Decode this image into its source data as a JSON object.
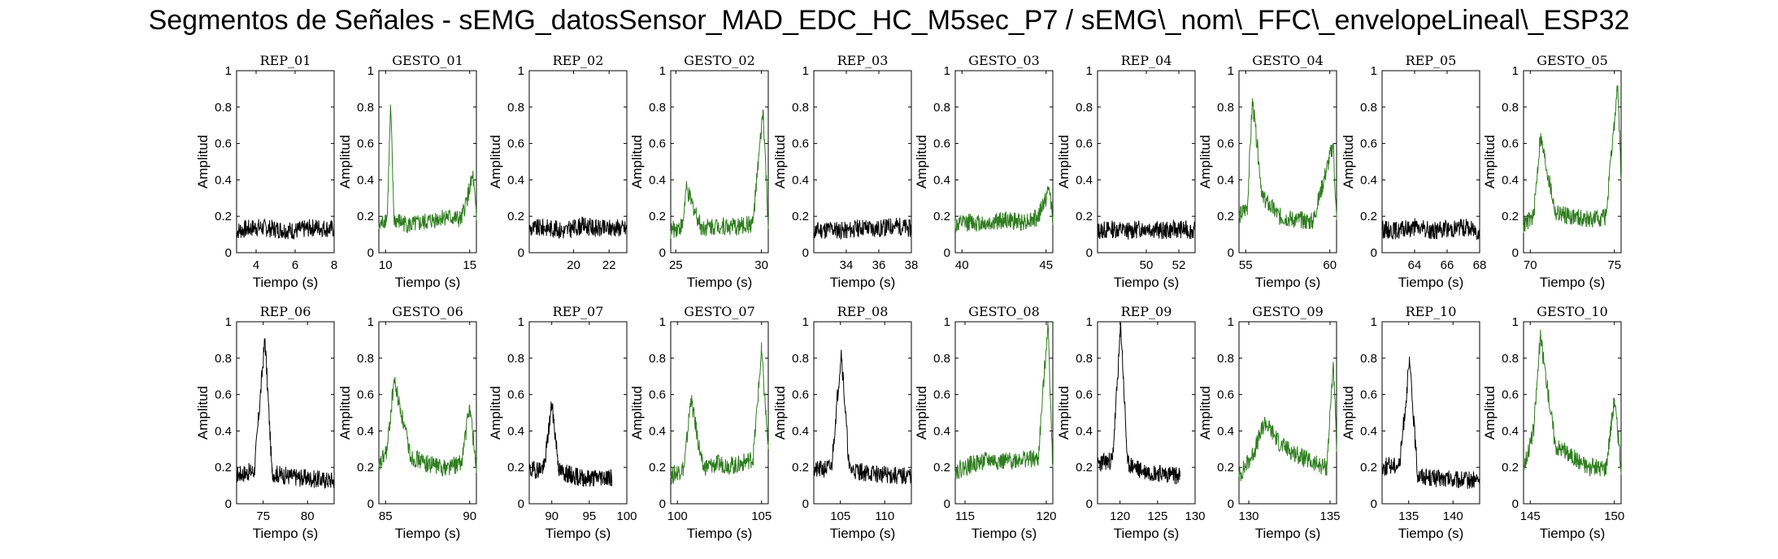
{
  "title": "Segmentos de Señales - sEMG_datosSensor_MAD_EDC_HC_M5sec_P7 / sEMG\\_nom\\_FFC\\_envelopeLineal\\_ESP32",
  "colors": {
    "rep": "#000000",
    "gesto": "#2e7d1e",
    "axis": "#000000"
  },
  "chart_data": [
    {
      "type": "line",
      "title": "REP_01",
      "xlabel": "Tiempo (s)",
      "ylabel": "Amplitud",
      "xlim": [
        3,
        8
      ],
      "ylim": [
        0,
        1
      ],
      "xticks": [
        4,
        6,
        8
      ],
      "yticks": [
        0,
        0.2,
        0.4,
        0.6,
        0.8,
        1
      ],
      "color": "black",
      "series": [
        {
          "x": [
            3,
            4,
            5,
            6,
            7,
            8
          ],
          "values": [
            0.12,
            0.14,
            0.13,
            0.12,
            0.14,
            0.13
          ]
        }
      ]
    },
    {
      "type": "line",
      "title": "GESTO_01",
      "xlabel": "Tiempo (s)",
      "ylabel": "Amplitud",
      "xlim": [
        9.6,
        15.4
      ],
      "ylim": [
        0,
        1
      ],
      "xticks": [
        10,
        15
      ],
      "yticks": [
        0,
        0.2,
        0.4,
        0.6,
        0.8,
        1
      ],
      "color": "green",
      "series": [
        {
          "x": [
            9.6,
            10.1,
            10.3,
            10.5,
            11.5,
            12.5,
            13.5,
            14.5,
            15.2,
            15.4
          ],
          "values": [
            0.14,
            0.2,
            0.8,
            0.18,
            0.15,
            0.17,
            0.2,
            0.18,
            0.42,
            0.18
          ]
        }
      ]
    },
    {
      "type": "line",
      "title": "REP_02",
      "xlabel": "",
      "ylabel": "Amplitud",
      "xlim": [
        17.5,
        23
      ],
      "ylim": [
        0,
        1
      ],
      "xticks": [
        20,
        22
      ],
      "yticks": [
        0,
        0.2,
        0.4,
        0.6,
        0.8,
        1
      ],
      "color": "black",
      "series": [
        {
          "x": [
            17.5,
            18.5,
            19.5,
            20.5,
            21.5,
            22.5,
            23
          ],
          "values": [
            0.13,
            0.14,
            0.12,
            0.15,
            0.13,
            0.14,
            0.13
          ]
        }
      ]
    },
    {
      "type": "line",
      "title": "GESTO_02",
      "xlabel": "Tiempo (s)",
      "ylabel": "Amplitud",
      "xlim": [
        24.7,
        30.4
      ],
      "ylim": [
        0,
        1
      ],
      "xticks": [
        25,
        30
      ],
      "yticks": [
        0,
        0.2,
        0.4,
        0.6,
        0.8,
        1
      ],
      "color": "green",
      "series": [
        {
          "x": [
            24.7,
            25.4,
            25.6,
            26.5,
            27.5,
            28.5,
            29.5,
            30.1,
            30.4
          ],
          "values": [
            0.12,
            0.15,
            0.35,
            0.14,
            0.15,
            0.14,
            0.16,
            0.78,
            0.15
          ]
        }
      ]
    },
    {
      "type": "line",
      "title": "REP_03",
      "xlabel": "Tiempo (s)",
      "ylabel": "Amplitud",
      "xlim": [
        32,
        38
      ],
      "ylim": [
        0,
        1
      ],
      "xticks": [
        34,
        36,
        38
      ],
      "yticks": [
        0,
        0.2,
        0.4,
        0.6,
        0.8,
        1
      ],
      "color": "black",
      "series": [
        {
          "x": [
            32,
            33,
            34,
            35,
            36,
            37,
            38
          ],
          "values": [
            0.12,
            0.13,
            0.12,
            0.14,
            0.13,
            0.15,
            0.13
          ]
        }
      ]
    },
    {
      "type": "line",
      "title": "GESTO_03",
      "xlabel": "",
      "ylabel": "Amplitud",
      "xlim": [
        39.6,
        45.4
      ],
      "ylim": [
        0,
        1
      ],
      "xticks": [
        40,
        45
      ],
      "yticks": [
        0,
        0.2,
        0.4,
        0.6,
        0.8,
        1
      ],
      "color": "green",
      "series": [
        {
          "x": [
            39.6,
            40.5,
            41.5,
            42.5,
            43.5,
            44.5,
            45.2,
            45.4
          ],
          "values": [
            0.15,
            0.17,
            0.16,
            0.18,
            0.17,
            0.19,
            0.35,
            0.2
          ]
        }
      ]
    },
    {
      "type": "line",
      "title": "REP_04",
      "xlabel": "Tiempo (s)",
      "ylabel": "Amplitud",
      "xlim": [
        47,
        53
      ],
      "ylim": [
        0,
        1
      ],
      "xticks": [
        50,
        52
      ],
      "yticks": [
        0,
        0.2,
        0.4,
        0.6,
        0.8,
        1
      ],
      "color": "black",
      "series": [
        {
          "x": [
            47,
            48,
            49,
            50,
            51,
            52,
            53
          ],
          "values": [
            0.12,
            0.13,
            0.12,
            0.14,
            0.12,
            0.13,
            0.12
          ]
        }
      ]
    },
    {
      "type": "line",
      "title": "GESTO_04",
      "xlabel": "Tiempo (s)",
      "ylabel": "Amplitud",
      "xlim": [
        54.6,
        60.4
      ],
      "ylim": [
        0,
        1
      ],
      "xticks": [
        55,
        60
      ],
      "yticks": [
        0,
        0.2,
        0.4,
        0.6,
        0.8,
        1
      ],
      "color": "green",
      "series": [
        {
          "x": [
            54.6,
            55.1,
            55.4,
            56,
            57,
            58,
            59,
            60.2,
            60.4
          ],
          "values": [
            0.2,
            0.25,
            0.84,
            0.3,
            0.2,
            0.18,
            0.17,
            0.6,
            0.18
          ]
        }
      ]
    },
    {
      "type": "line",
      "title": "REP_05",
      "xlabel": "Tiempo (s)",
      "ylabel": "Amplitud",
      "xlim": [
        62,
        68
      ],
      "ylim": [
        0,
        1
      ],
      "xticks": [
        64,
        66,
        68
      ],
      "yticks": [
        0,
        0.2,
        0.4,
        0.6,
        0.8,
        1
      ],
      "color": "black",
      "series": [
        {
          "x": [
            62,
            63,
            64,
            65,
            66,
            67,
            68
          ],
          "values": [
            0.13,
            0.12,
            0.14,
            0.12,
            0.13,
            0.14,
            0.12
          ]
        }
      ]
    },
    {
      "type": "line",
      "title": "GESTO_05",
      "xlabel": "Tiempo (s)",
      "ylabel": "Amplitud",
      "xlim": [
        69.6,
        75.4
      ],
      "ylim": [
        0,
        1
      ],
      "xticks": [
        70,
        75
      ],
      "yticks": [
        0,
        0.2,
        0.4,
        0.6,
        0.8,
        1
      ],
      "color": "green",
      "series": [
        {
          "x": [
            69.6,
            70.2,
            70.6,
            71.5,
            72.5,
            73.5,
            74.5,
            75.2,
            75.4
          ],
          "values": [
            0.15,
            0.2,
            0.64,
            0.22,
            0.2,
            0.18,
            0.2,
            0.92,
            0.4
          ]
        }
      ]
    },
    {
      "type": "line",
      "title": "REP_06",
      "xlabel": "Tiempo (s)",
      "ylabel": "Amplitud",
      "xlim": [
        72,
        83
      ],
      "ylim": [
        0,
        1
      ],
      "xticks": [
        75,
        80
      ],
      "yticks": [
        0,
        0.2,
        0.4,
        0.6,
        0.8,
        1
      ],
      "color": "black",
      "series": [
        {
          "x": [
            72,
            74,
            75.2,
            76,
            78,
            80,
            82,
            83
          ],
          "values": [
            0.16,
            0.18,
            0.91,
            0.17,
            0.15,
            0.14,
            0.13,
            0.13
          ]
        }
      ]
    },
    {
      "type": "line",
      "title": "GESTO_06",
      "xlabel": "Tiempo (s)",
      "ylabel": "Amplitud",
      "xlim": [
        84.6,
        90.4
      ],
      "ylim": [
        0,
        1
      ],
      "xticks": [
        85,
        90
      ],
      "yticks": [
        0,
        0.2,
        0.4,
        0.6,
        0.8,
        1
      ],
      "color": "green",
      "series": [
        {
          "x": [
            84.6,
            85.1,
            85.5,
            86.5,
            87.5,
            88.5,
            89.5,
            90,
            90.4
          ],
          "values": [
            0.2,
            0.3,
            0.68,
            0.26,
            0.22,
            0.2,
            0.22,
            0.54,
            0.2
          ]
        }
      ]
    },
    {
      "type": "line",
      "title": "REP_07",
      "xlabel": "Tiempo (s)",
      "ylabel": "Amplitud",
      "xlim": [
        87,
        100
      ],
      "ylim": [
        0,
        1
      ],
      "xticks": [
        90,
        95,
        100
      ],
      "yticks": [
        0,
        0.2,
        0.4,
        0.6,
        0.8,
        1
      ],
      "color": "black",
      "series": [
        {
          "x": [
            87,
            89,
            90,
            91,
            93,
            95,
            97,
            98
          ],
          "values": [
            0.18,
            0.2,
            0.55,
            0.18,
            0.15,
            0.14,
            0.15,
            0.14
          ]
        }
      ]
    },
    {
      "type": "line",
      "title": "GESTO_07",
      "xlabel": "Tiempo (s)",
      "ylabel": "Amplitud",
      "xlim": [
        99.6,
        105.4
      ],
      "ylim": [
        0,
        1
      ],
      "xticks": [
        100,
        105
      ],
      "yticks": [
        0,
        0.2,
        0.4,
        0.6,
        0.8,
        1
      ],
      "color": "green",
      "series": [
        {
          "x": [
            99.6,
            100.4,
            100.8,
            101.5,
            102.5,
            103.5,
            104.5,
            105,
            105.4
          ],
          "values": [
            0.15,
            0.2,
            0.58,
            0.2,
            0.22,
            0.21,
            0.25,
            0.84,
            0.3
          ]
        }
      ]
    },
    {
      "type": "line",
      "title": "REP_08",
      "xlabel": "Tiempo (s)",
      "ylabel": "Amplitud",
      "xlim": [
        102,
        113
      ],
      "ylim": [
        0,
        1
      ],
      "xticks": [
        105,
        110
      ],
      "yticks": [
        0,
        0.2,
        0.4,
        0.6,
        0.8,
        1
      ],
      "color": "black",
      "series": [
        {
          "x": [
            102,
            104,
            105.1,
            106,
            108,
            110,
            112,
            113
          ],
          "values": [
            0.18,
            0.2,
            0.84,
            0.19,
            0.17,
            0.16,
            0.15,
            0.16
          ]
        }
      ]
    },
    {
      "type": "line",
      "title": "GESTO_08",
      "xlabel": "Tiempo (s)",
      "ylabel": "Amplitud",
      "xlim": [
        114.4,
        120.4
      ],
      "ylim": [
        0,
        1
      ],
      "xticks": [
        115,
        120
      ],
      "yticks": [
        0,
        0.2,
        0.4,
        0.6,
        0.8,
        1
      ],
      "color": "green",
      "series": [
        {
          "x": [
            114.4,
            115.5,
            116.5,
            117.5,
            118.5,
            119.5,
            120.1,
            120.4
          ],
          "values": [
            0.18,
            0.22,
            0.24,
            0.23,
            0.25,
            0.24,
            1.0,
            0.2
          ]
        }
      ]
    },
    {
      "type": "line",
      "title": "REP_09",
      "xlabel": "Tiempo (s)",
      "ylabel": "Amplitud",
      "xlim": [
        117,
        130
      ],
      "ylim": [
        0,
        1
      ],
      "xticks": [
        120,
        125,
        130
      ],
      "yticks": [
        0,
        0.2,
        0.4,
        0.6,
        0.8,
        1
      ],
      "color": "black",
      "series": [
        {
          "x": [
            117,
            119,
            120.1,
            121,
            123,
            125,
            127,
            128
          ],
          "values": [
            0.22,
            0.24,
            0.98,
            0.22,
            0.18,
            0.17,
            0.16,
            0.15
          ]
        }
      ]
    },
    {
      "type": "line",
      "title": "GESTO_09",
      "xlabel": "Tiempo (s)",
      "ylabel": "Amplitud",
      "xlim": [
        129.4,
        135.4
      ],
      "ylim": [
        0,
        1
      ],
      "xticks": [
        130,
        135
      ],
      "yticks": [
        0,
        0.2,
        0.4,
        0.6,
        0.8,
        1
      ],
      "color": "green",
      "series": [
        {
          "x": [
            129.4,
            130.3,
            131,
            132,
            133,
            134,
            134.8,
            135.2,
            135.4
          ],
          "values": [
            0.15,
            0.28,
            0.45,
            0.32,
            0.27,
            0.22,
            0.2,
            0.78,
            0.3
          ]
        }
      ]
    },
    {
      "type": "line",
      "title": "REP_10",
      "xlabel": "Tiempo (s)",
      "ylabel": "Amplitud",
      "xlim": [
        132,
        143
      ],
      "ylim": [
        0,
        1
      ],
      "xticks": [
        135,
        140
      ],
      "yticks": [
        0,
        0.2,
        0.4,
        0.6,
        0.8,
        1
      ],
      "color": "black",
      "series": [
        {
          "x": [
            132,
            134,
            135.1,
            136,
            138,
            140,
            142,
            143
          ],
          "values": [
            0.2,
            0.22,
            0.78,
            0.16,
            0.14,
            0.13,
            0.13,
            0.13
          ]
        }
      ]
    },
    {
      "type": "line",
      "title": "GESTO_10",
      "xlabel": "Tiempo (s)",
      "ylabel": "Amplitud",
      "xlim": [
        144.6,
        150.4
      ],
      "ylim": [
        0,
        1
      ],
      "xticks": [
        145,
        150
      ],
      "yticks": [
        0,
        0.2,
        0.4,
        0.6,
        0.8,
        1
      ],
      "color": "green",
      "series": [
        {
          "x": [
            144.6,
            145.2,
            145.6,
            146.5,
            147.5,
            148.5,
            149.5,
            150,
            150.4
          ],
          "values": [
            0.2,
            0.4,
            0.92,
            0.32,
            0.26,
            0.2,
            0.2,
            0.58,
            0.2
          ]
        }
      ]
    }
  ]
}
